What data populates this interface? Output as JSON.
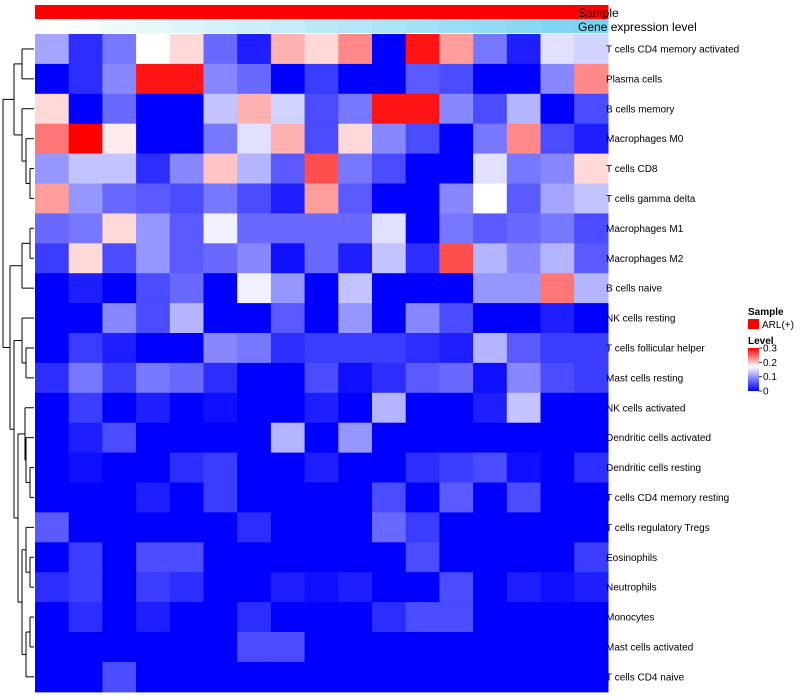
{
  "chart_data": {
    "type": "heatmap",
    "annotation_tracks": [
      {
        "label": "Sample"
      },
      {
        "label": "Gene expression level"
      }
    ],
    "gene_expression_values": [
      0.0,
      0.05,
      0.1,
      0.15,
      0.2,
      0.25,
      0.3,
      0.35,
      0.4,
      0.45,
      0.5,
      0.55,
      0.6,
      0.65,
      0.7,
      0.75,
      0.8,
      0.85,
      0.9,
      0.95,
      1.0
    ],
    "rows": [
      "T cells CD4 memory activated",
      "Plasma cells",
      "B cells memory",
      "Macrophages M0",
      "T cells CD8",
      "T cells gamma delta",
      "Macrophages M1",
      "Macrophages M2",
      "B cells naive",
      "NK cells resting",
      "T cells follicular helper",
      "Mast cells resting",
      "NK cells activated",
      "Dendritic cells activated",
      "Dendritic cells resting",
      "T cells CD4 memory resting",
      "T cells regulatory  Tregs",
      "Eosinophils",
      "Neutrophils",
      "Monocytes",
      "Mast cells activated",
      "T cells CD4 naive"
    ],
    "values": [
      [
        0.11,
        0.03,
        0.08,
        0.17,
        0.19,
        0.07,
        0.02,
        0.21,
        0.19,
        0.23,
        0.0,
        0.29,
        0.22,
        0.08,
        0.02,
        0.15,
        0.14
      ],
      [
        0.0,
        0.03,
        0.09,
        0.29,
        0.29,
        0.09,
        0.07,
        0.0,
        0.04,
        0.0,
        0.0,
        0.06,
        0.05,
        0.0,
        0.0,
        0.09,
        0.23
      ],
      [
        0.19,
        0.0,
        0.07,
        0.0,
        0.0,
        0.13,
        0.21,
        0.14,
        0.05,
        0.08,
        0.29,
        0.29,
        0.09,
        0.05,
        0.12,
        0.0,
        0.05
      ],
      [
        0.24,
        0.3,
        0.18,
        0.0,
        0.0,
        0.08,
        0.15,
        0.21,
        0.05,
        0.19,
        0.09,
        0.05,
        0.0,
        0.08,
        0.23,
        0.05,
        0.02
      ],
      [
        0.1,
        0.13,
        0.13,
        0.03,
        0.09,
        0.2,
        0.12,
        0.06,
        0.26,
        0.08,
        0.05,
        0.0,
        0.0,
        0.15,
        0.08,
        0.09,
        0.19
      ],
      [
        0.22,
        0.1,
        0.07,
        0.06,
        0.05,
        0.08,
        0.05,
        0.02,
        0.22,
        0.06,
        0.0,
        0.0,
        0.09,
        0.17,
        0.06,
        0.11,
        0.13
      ],
      [
        0.07,
        0.08,
        0.19,
        0.1,
        0.06,
        0.16,
        0.07,
        0.07,
        0.07,
        0.07,
        0.15,
        0.0,
        0.08,
        0.06,
        0.07,
        0.08,
        0.05
      ],
      [
        0.04,
        0.19,
        0.05,
        0.1,
        0.06,
        0.07,
        0.09,
        0.01,
        0.07,
        0.02,
        0.13,
        0.03,
        0.26,
        0.12,
        0.09,
        0.12,
        0.06
      ],
      [
        0.0,
        0.02,
        0.0,
        0.05,
        0.07,
        0.0,
        0.16,
        0.1,
        0.0,
        0.13,
        0.0,
        0.0,
        0.0,
        0.1,
        0.1,
        0.24,
        0.12
      ],
      [
        0.0,
        0.0,
        0.09,
        0.05,
        0.12,
        0.0,
        0.0,
        0.06,
        0.0,
        0.1,
        0.0,
        0.09,
        0.05,
        0.0,
        0.0,
        0.02,
        0.0
      ],
      [
        0.0,
        0.04,
        0.02,
        0.0,
        0.0,
        0.09,
        0.08,
        0.03,
        0.04,
        0.04,
        0.04,
        0.03,
        0.02,
        0.12,
        0.06,
        0.04,
        0.04
      ],
      [
        0.03,
        0.08,
        0.04,
        0.08,
        0.07,
        0.03,
        0.0,
        0.0,
        0.05,
        0.01,
        0.03,
        0.06,
        0.07,
        0.01,
        0.09,
        0.05,
        0.04
      ],
      [
        0.0,
        0.04,
        0.0,
        0.02,
        0.0,
        0.01,
        0.0,
        0.0,
        0.02,
        0.0,
        0.12,
        0.0,
        0.0,
        0.02,
        0.13,
        0.0,
        0.0
      ],
      [
        0.0,
        0.02,
        0.05,
        0.0,
        0.0,
        0.0,
        0.0,
        0.12,
        0.0,
        0.1,
        0.0,
        0.0,
        0.0,
        0.0,
        0.0,
        0.0,
        0.0
      ],
      [
        0.0,
        0.01,
        0.0,
        0.0,
        0.03,
        0.04,
        0.0,
        0.0,
        0.02,
        0.0,
        0.0,
        0.03,
        0.04,
        0.05,
        0.01,
        0.0,
        0.03
      ],
      [
        0.0,
        0.0,
        0.0,
        0.02,
        0.0,
        0.04,
        0.0,
        0.0,
        0.0,
        0.0,
        0.05,
        0.0,
        0.06,
        0.0,
        0.05,
        0.0,
        0.0
      ],
      [
        0.06,
        0.0,
        0.0,
        0.0,
        0.0,
        0.0,
        0.03,
        0.0,
        0.0,
        0.0,
        0.07,
        0.04,
        0.0,
        0.0,
        0.0,
        0.0,
        0.0
      ],
      [
        0.0,
        0.04,
        0.0,
        0.05,
        0.05,
        0.0,
        0.0,
        0.0,
        0.0,
        0.0,
        0.0,
        0.05,
        0.0,
        0.0,
        0.0,
        0.0,
        0.04
      ],
      [
        0.03,
        0.04,
        0.0,
        0.04,
        0.03,
        0.0,
        0.0,
        0.02,
        0.01,
        0.02,
        0.0,
        0.0,
        0.05,
        0.0,
        0.02,
        0.01,
        0.02
      ],
      [
        0.0,
        0.03,
        0.0,
        0.02,
        0.0,
        0.0,
        0.03,
        0.0,
        0.0,
        0.0,
        0.03,
        0.05,
        0.05,
        0.0,
        0.0,
        0.0,
        0.0
      ],
      [
        0.0,
        0.0,
        0.0,
        0.0,
        0.0,
        0.0,
        0.05,
        0.05,
        0.0,
        0.0,
        0.0,
        0.0,
        0.0,
        0.0,
        0.0,
        0.0,
        0.0
      ],
      [
        0.0,
        0.0,
        0.05,
        0.0,
        0.0,
        0.0,
        0.0,
        0.0,
        0.0,
        0.0,
        0.0,
        0.0,
        0.0,
        0.0,
        0.0,
        0.0,
        0.0
      ]
    ],
    "colorscale": {
      "low": "#0000ff",
      "mid": "#ffffff",
      "high": "#ff0000",
      "min": 0.0,
      "mid_value": 0.17,
      "max": 0.3
    },
    "legend": {
      "sample_title": "Sample",
      "sample_entry": "ARL(+)",
      "sample_color": "#ff0000",
      "level_title": "Level",
      "ticks": [
        {
          "value": 0.3,
          "label": "0.3"
        },
        {
          "value": 0.2,
          "label": "0.2"
        },
        {
          "value": 0.1,
          "label": "0.1"
        },
        {
          "value": 0.0,
          "label": "0"
        }
      ]
    },
    "dendrogram": "row clustering tree (left side)"
  }
}
